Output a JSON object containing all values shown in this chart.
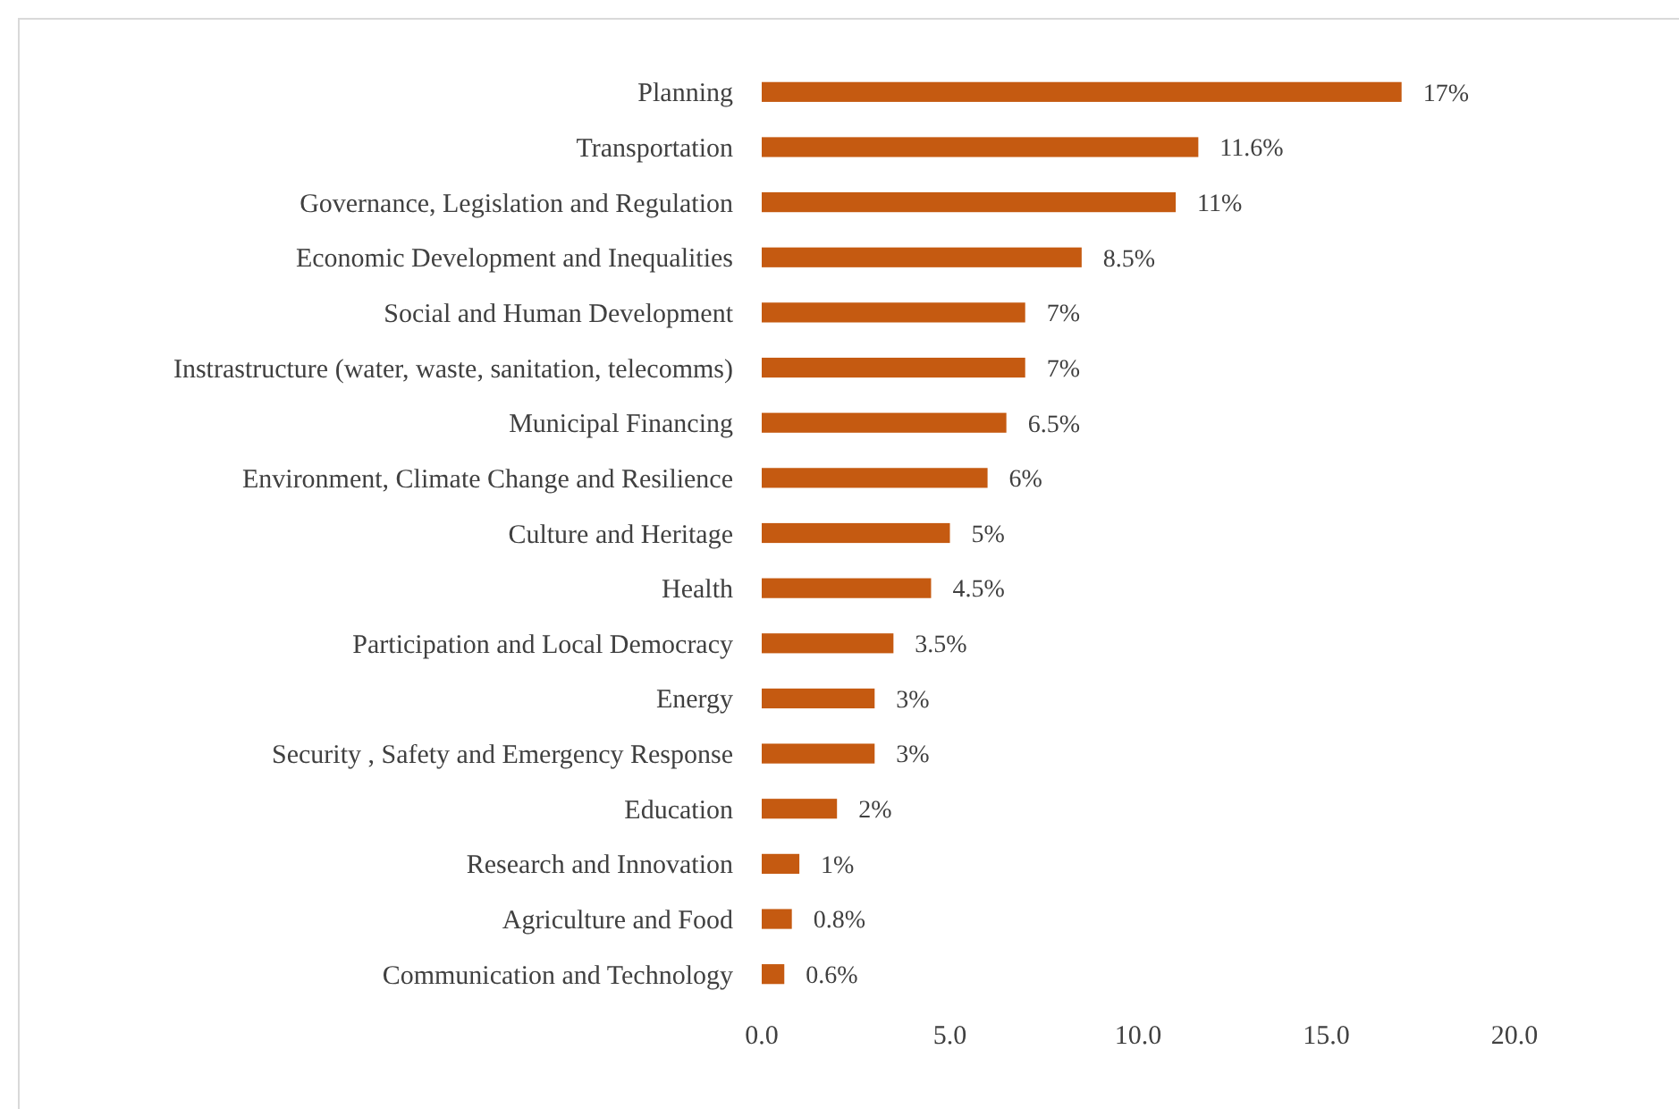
{
  "chart_data": {
    "type": "bar",
    "orientation": "horizontal",
    "categories": [
      "Planning",
      "Transportation",
      "Governance, Legislation and Regulation",
      "Economic Development and Inequalities",
      "Social and Human Development",
      "Instrastructure (water, waste, sanitation, telecomms)",
      "Municipal Financing",
      "Environment, Climate Change and Resilience",
      "Culture and Heritage",
      "Health",
      "Participation and Local Democracy",
      "Energy",
      "Security , Safety and Emergency Response",
      "Education",
      "Research and Innovation",
      "Agriculture and Food",
      "Communication and Technology"
    ],
    "values": [
      17,
      11.6,
      11,
      8.5,
      7,
      7,
      6.5,
      6,
      5,
      4.5,
      3.5,
      3,
      3,
      2,
      1,
      0.8,
      0.6
    ],
    "value_labels": [
      "17%",
      "11.6%",
      "11%",
      "8.5%",
      "7%",
      "7%",
      "6.5%",
      "6%",
      "5%",
      "4.5%",
      "3.5%",
      "3%",
      "3%",
      "2%",
      "1%",
      "0.8%",
      "0.6%"
    ],
    "color": "#c55a11",
    "xlim": [
      0,
      20
    ],
    "xticks": [
      {
        "value": 0,
        "label": "0.0"
      },
      {
        "value": 5,
        "label": "5.0"
      },
      {
        "value": 10,
        "label": "10.0"
      },
      {
        "value": 15,
        "label": "15.0"
      },
      {
        "value": 20,
        "label": "20.0"
      }
    ],
    "grid": false
  }
}
